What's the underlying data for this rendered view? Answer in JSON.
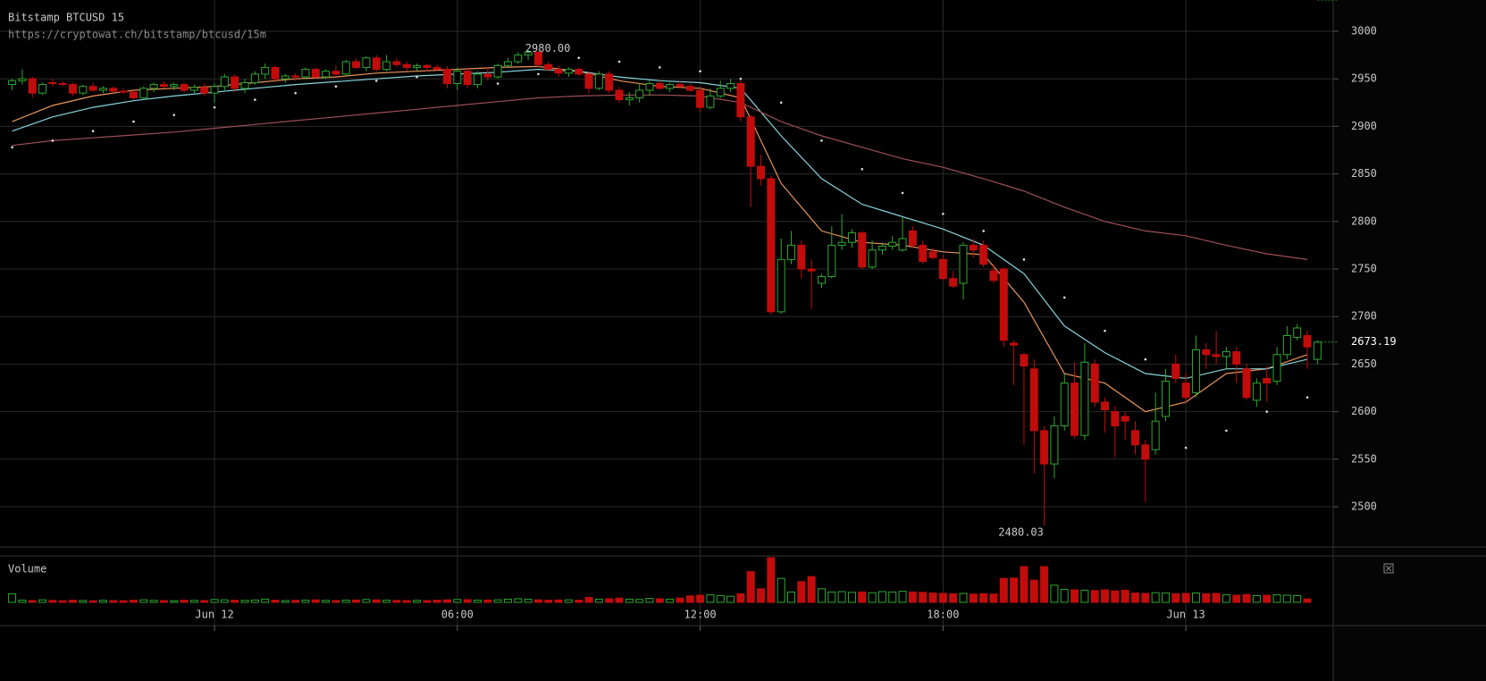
{
  "chart_data": {
    "type": "candlestick",
    "title": "Bitstamp BTCUSD 15",
    "subtitle": "https://cryptowat.ch/bitstamp/btcusd/15m",
    "up_color": "#2ea82e",
    "down_color": "#c20c0c",
    "xlim": [
      -5.3,
      27.64
    ],
    "xticks": [
      {
        "value": 0,
        "label": "Jun 12"
      },
      {
        "value": 6,
        "label": "06:00"
      },
      {
        "value": 12,
        "label": "12:00"
      },
      {
        "value": 18,
        "label": "18:00"
      },
      {
        "value": 24,
        "label": "Jun 13"
      }
    ],
    "ylim": [
      2457.7,
      3032.9
    ],
    "yticks": [
      2500,
      2550,
      2600,
      2650,
      2700,
      2750,
      2800,
      2850,
      2900,
      2950,
      3000
    ],
    "grid": true,
    "annotations": [
      {
        "text": "2980.00",
        "value": 2980
      },
      {
        "text": "2480.03",
        "value": 2480.03
      }
    ],
    "x": [
      -5,
      -4.75,
      -4.5,
      -4.25,
      -4,
      -3.75,
      -3.5,
      -3.25,
      -3,
      -2.75,
      -2.5,
      -2.25,
      -2,
      -1.75,
      -1.5,
      -1.25,
      -1,
      -0.75,
      -0.5,
      -0.25,
      0,
      0.25,
      0.5,
      0.75,
      1,
      1.25,
      1.5,
      1.75,
      2,
      2.25,
      2.5,
      2.75,
      3,
      3.25,
      3.5,
      3.75,
      4,
      4.25,
      4.5,
      4.75,
      5,
      5.25,
      5.5,
      5.75,
      6,
      6.25,
      6.5,
      6.75,
      7,
      7.25,
      7.5,
      7.75,
      8,
      8.25,
      8.5,
      8.75,
      9,
      9.25,
      9.5,
      9.75,
      10,
      10.25,
      10.5,
      10.75,
      11,
      11.25,
      11.5,
      11.75,
      12,
      12.25,
      12.5,
      12.75,
      13,
      13.25,
      13.5,
      13.75,
      14,
      14.25,
      14.5,
      14.75,
      15,
      15.25,
      15.5,
      15.75,
      16,
      16.25,
      16.5,
      16.75,
      17,
      17.25,
      17.5,
      17.75,
      18,
      18.25,
      18.5,
      18.75,
      19,
      19.25,
      19.5,
      19.75,
      20,
      20.25,
      20.5,
      20.75,
      21,
      21.25,
      21.5,
      21.75,
      22,
      22.25,
      22.5,
      22.75,
      23,
      23.25,
      23.5,
      23.75,
      24,
      24.25,
      24.5,
      24.75,
      25,
      25.25,
      25.5,
      25.75,
      26,
      26.25,
      26.5,
      26.75,
      27,
      27.25
    ],
    "candles": [
      [
        2944,
        2950,
        2938,
        2948
      ],
      [
        2948,
        2960,
        2944,
        2950
      ],
      [
        2950,
        2952,
        2930,
        2935
      ],
      [
        2935,
        2946,
        2933,
        2944
      ],
      [
        2946,
        2950,
        2942,
        2945
      ],
      [
        2945,
        2948,
        2942,
        2944
      ],
      [
        2944,
        2946,
        2932,
        2935
      ],
      [
        2935,
        2944,
        2933,
        2942
      ],
      [
        2942,
        2946,
        2937,
        2938
      ],
      [
        2938,
        2942,
        2935,
        2940
      ],
      [
        2940,
        2942,
        2936,
        2937
      ],
      [
        2937,
        2940,
        2934,
        2936
      ],
      [
        2936,
        2938,
        2928,
        2930
      ],
      [
        2930,
        2942,
        2928,
        2940
      ],
      [
        2940,
        2946,
        2936,
        2944
      ],
      [
        2944,
        2948,
        2940,
        2942
      ],
      [
        2942,
        2946,
        2938,
        2944
      ],
      [
        2944,
        2946,
        2936,
        2938
      ],
      [
        2938,
        2944,
        2935,
        2941
      ],
      [
        2941,
        2945,
        2932,
        2935
      ],
      [
        2935,
        2945,
        2925,
        2942
      ],
      [
        2942,
        2955,
        2938,
        2952
      ],
      [
        2952,
        2955,
        2936,
        2940
      ],
      [
        2940,
        2950,
        2935,
        2946
      ],
      [
        2946,
        2958,
        2944,
        2955
      ],
      [
        2955,
        2966,
        2950,
        2962
      ],
      [
        2962,
        2964,
        2946,
        2950
      ],
      [
        2950,
        2955,
        2946,
        2953
      ],
      [
        2953,
        2956,
        2948,
        2952
      ],
      [
        2952,
        2962,
        2950,
        2960
      ],
      [
        2960,
        2962,
        2950,
        2952
      ],
      [
        2952,
        2960,
        2950,
        2958
      ],
      [
        2958,
        2964,
        2952,
        2955
      ],
      [
        2955,
        2970,
        2953,
        2968
      ],
      [
        2968,
        2972,
        2960,
        2962
      ],
      [
        2962,
        2974,
        2958,
        2972
      ],
      [
        2972,
        2975,
        2958,
        2960
      ],
      [
        2960,
        2975,
        2958,
        2968
      ],
      [
        2968,
        2972,
        2962,
        2965
      ],
      [
        2965,
        2968,
        2958,
        2962
      ],
      [
        2962,
        2966,
        2958,
        2964
      ],
      [
        2964,
        2966,
        2958,
        2962
      ],
      [
        2962,
        2965,
        2958,
        2960
      ],
      [
        2960,
        2963,
        2940,
        2945
      ],
      [
        2945,
        2962,
        2938,
        2958
      ],
      [
        2958,
        2962,
        2940,
        2944
      ],
      [
        2944,
        2958,
        2940,
        2955
      ],
      [
        2955,
        2962,
        2948,
        2952
      ],
      [
        2952,
        2966,
        2950,
        2964
      ],
      [
        2964,
        2972,
        2962,
        2968
      ],
      [
        2968,
        2978,
        2966,
        2975
      ],
      [
        2975,
        2980,
        2970,
        2978
      ],
      [
        2978,
        2979,
        2962,
        2965
      ],
      [
        2965,
        2968,
        2958,
        2960
      ],
      [
        2960,
        2964,
        2952,
        2956
      ],
      [
        2956,
        2962,
        2952,
        2960
      ],
      [
        2960,
        2962,
        2953,
        2955
      ],
      [
        2955,
        2958,
        2935,
        2940
      ],
      [
        2940,
        2958,
        2938,
        2955
      ],
      [
        2955,
        2958,
        2935,
        2938
      ],
      [
        2938,
        2942,
        2925,
        2928
      ],
      [
        2928,
        2936,
        2922,
        2930
      ],
      [
        2930,
        2945,
        2925,
        2938
      ],
      [
        2938,
        2948,
        2932,
        2945
      ],
      [
        2945,
        2948,
        2938,
        2940
      ],
      [
        2940,
        2946,
        2936,
        2944
      ],
      [
        2944,
        2948,
        2940,
        2942
      ],
      [
        2942,
        2945,
        2936,
        2938
      ],
      [
        2938,
        2942,
        2915,
        2920
      ],
      [
        2920,
        2940,
        2918,
        2932
      ],
      [
        2932,
        2948,
        2930,
        2940
      ],
      [
        2940,
        2950,
        2936,
        2945
      ],
      [
        2945,
        2948,
        2905,
        2910
      ],
      [
        2910,
        2912,
        2815,
        2858
      ],
      [
        2858,
        2870,
        2838,
        2845
      ],
      [
        2845,
        2848,
        2702,
        2705
      ],
      [
        2705,
        2782,
        2703,
        2760
      ],
      [
        2760,
        2790,
        2755,
        2775
      ],
      [
        2775,
        2780,
        2740,
        2750
      ],
      [
        2750,
        2760,
        2708,
        2748
      ],
      [
        2735,
        2745,
        2730,
        2742
      ],
      [
        2742,
        2795,
        2740,
        2775
      ],
      [
        2775,
        2808,
        2770,
        2778
      ],
      [
        2778,
        2792,
        2772,
        2788
      ],
      [
        2788,
        2790,
        2750,
        2752
      ],
      [
        2752,
        2780,
        2750,
        2770
      ],
      [
        2770,
        2778,
        2765,
        2774
      ],
      [
        2774,
        2785,
        2770,
        2778
      ],
      [
        2770,
        2805,
        2768,
        2782
      ],
      [
        2790,
        2795,
        2772,
        2775
      ],
      [
        2775,
        2780,
        2755,
        2758
      ],
      [
        2768,
        2772,
        2760,
        2762
      ],
      [
        2760,
        2765,
        2738,
        2740
      ],
      [
        2740,
        2748,
        2730,
        2732
      ],
      [
        2735,
        2778,
        2718,
        2775
      ],
      [
        2775,
        2782,
        2762,
        2770
      ],
      [
        2775,
        2780,
        2752,
        2755
      ],
      [
        2748,
        2755,
        2735,
        2738
      ],
      [
        2750,
        2752,
        2668,
        2675
      ],
      [
        2672,
        2675,
        2628,
        2670
      ],
      [
        2660,
        2662,
        2565,
        2648
      ],
      [
        2645,
        2655,
        2535,
        2580
      ],
      [
        2580,
        2585,
        2480.03,
        2545
      ],
      [
        2545,
        2595,
        2530,
        2585
      ],
      [
        2585,
        2640,
        2580,
        2630
      ],
      [
        2630,
        2652,
        2572,
        2575
      ],
      [
        2575,
        2672,
        2570,
        2652
      ],
      [
        2650,
        2655,
        2605,
        2610
      ],
      [
        2610,
        2615,
        2578,
        2602
      ],
      [
        2600,
        2606,
        2552,
        2585
      ],
      [
        2595,
        2600,
        2570,
        2590
      ],
      [
        2580,
        2590,
        2555,
        2565
      ],
      [
        2565,
        2570,
        2505,
        2550
      ],
      [
        2560,
        2620,
        2555,
        2590
      ],
      [
        2595,
        2645,
        2590,
        2632
      ],
      [
        2650,
        2660,
        2630,
        2635
      ],
      [
        2630,
        2640,
        2610,
        2615
      ],
      [
        2620,
        2680,
        2615,
        2665
      ],
      [
        2665,
        2672,
        2645,
        2660
      ],
      [
        2660,
        2685,
        2650,
        2658
      ],
      [
        2658,
        2668,
        2645,
        2663
      ],
      [
        2663,
        2668,
        2630,
        2650
      ],
      [
        2645,
        2650,
        2612,
        2615
      ],
      [
        2612,
        2635,
        2605,
        2630
      ],
      [
        2635,
        2648,
        2610,
        2630
      ],
      [
        2632,
        2668,
        2628,
        2660
      ],
      [
        2660,
        2690,
        2655,
        2680
      ],
      [
        2678,
        2692,
        2675,
        2688
      ],
      [
        2680,
        2685,
        2645,
        2668
      ],
      [
        2655,
        2675,
        2650,
        2673.19
      ]
    ],
    "lines": [
      {
        "color": "#e8955a",
        "x": [
          -5,
          -4,
          -3,
          -2,
          -1,
          0,
          1,
          2,
          3,
          4,
          5,
          6,
          7,
          8,
          9,
          10,
          11,
          12,
          13,
          14,
          15,
          16,
          17,
          18,
          19,
          20,
          21,
          22,
          23,
          24,
          25,
          26,
          27
        ],
        "values": [
          2905,
          2922,
          2932,
          2938,
          2940,
          2942,
          2946,
          2950,
          2952,
          2956,
          2958,
          2960,
          2962,
          2963,
          2958,
          2948,
          2942,
          2940,
          2930,
          2840,
          2790,
          2778,
          2775,
          2768,
          2765,
          2715,
          2640,
          2630,
          2600,
          2610,
          2640,
          2645,
          2660
        ]
      },
      {
        "color": "#86d4dc",
        "x": [
          -5,
          -4,
          -3,
          -2,
          -1,
          0,
          1,
          2,
          3,
          4,
          5,
          6,
          7,
          8,
          9,
          10,
          11,
          12,
          13,
          14,
          15,
          16,
          17,
          18,
          19,
          20,
          21,
          22,
          23,
          24,
          25,
          26,
          27
        ],
        "values": [
          2895,
          2910,
          2920,
          2927,
          2932,
          2936,
          2940,
          2944,
          2947,
          2950,
          2953,
          2955,
          2957,
          2960,
          2958,
          2952,
          2948,
          2946,
          2940,
          2890,
          2845,
          2818,
          2805,
          2792,
          2775,
          2745,
          2690,
          2662,
          2640,
          2635,
          2645,
          2645,
          2655
        ]
      },
      {
        "color": "#9c4f58",
        "x": [
          -5,
          -4,
          -3,
          -2,
          -1,
          0,
          1,
          2,
          3,
          4,
          5,
          6,
          7,
          8,
          9,
          10,
          11,
          12,
          13,
          14,
          15,
          16,
          17,
          18,
          19,
          20,
          21,
          22,
          23,
          24,
          25,
          26,
          27
        ],
        "values": [
          2880,
          2885,
          2888,
          2891,
          2894,
          2898,
          2902,
          2906,
          2910,
          2914,
          2918,
          2922,
          2926,
          2930,
          2932,
          2933,
          2933,
          2932,
          2925,
          2905,
          2890,
          2878,
          2866,
          2857,
          2845,
          2832,
          2815,
          2800,
          2790,
          2785,
          2775,
          2766,
          2760
        ]
      }
    ],
    "dots": {
      "color": "#dddddd",
      "x": [
        -5,
        -4,
        -3,
        -2,
        -1,
        0,
        1,
        2,
        3,
        4,
        5,
        6,
        7,
        8,
        9,
        10,
        11,
        12,
        13,
        14,
        15,
        16,
        17,
        18,
        19,
        20,
        21,
        22,
        23,
        24,
        25,
        26,
        27
      ],
      "values": [
        2878,
        2885,
        2895,
        2905,
        2912,
        2920,
        2928,
        2935,
        2942,
        2948,
        2952,
        2957,
        2945,
        2955,
        2972,
        2968,
        2962,
        2958,
        2950,
        2925,
        2885,
        2855,
        2830,
        2808,
        2790,
        2760,
        2720,
        2685,
        2655,
        2562,
        2580,
        2600,
        2615
      ]
    },
    "volume": {
      "title": "Volume",
      "ylim": [
        0,
        1300
      ],
      "values": [
        240,
        60,
        50,
        70,
        55,
        45,
        60,
        50,
        45,
        55,
        50,
        45,
        60,
        70,
        55,
        50,
        45,
        60,
        55,
        50,
        80,
        70,
        60,
        55,
        65,
        90,
        60,
        50,
        55,
        60,
        70,
        55,
        50,
        60,
        65,
        80,
        70,
        60,
        55,
        50,
        55,
        50,
        60,
        70,
        80,
        75,
        60,
        65,
        70,
        90,
        100,
        85,
        70,
        60,
        65,
        70,
        60,
        140,
        90,
        100,
        120,
        90,
        80,
        110,
        100,
        90,
        120,
        180,
        200,
        210,
        190,
        170,
        240,
        860,
        380,
        1250,
        670,
        290,
        580,
        720,
        380,
        290,
        300,
        280,
        290,
        270,
        300,
        290,
        310,
        290,
        280,
        260,
        250,
        240,
        250,
        230,
        240,
        230,
        670,
        680,
        1000,
        620,
        1000,
        480,
        360,
        350,
        340,
        330,
        350,
        320,
        340,
        260,
        250,
        270,
        260,
        240,
        250,
        260,
        240,
        250,
        210,
        200,
        220,
        190,
        200,
        210,
        200,
        190,
        95.214966
      ]
    }
  }
}
